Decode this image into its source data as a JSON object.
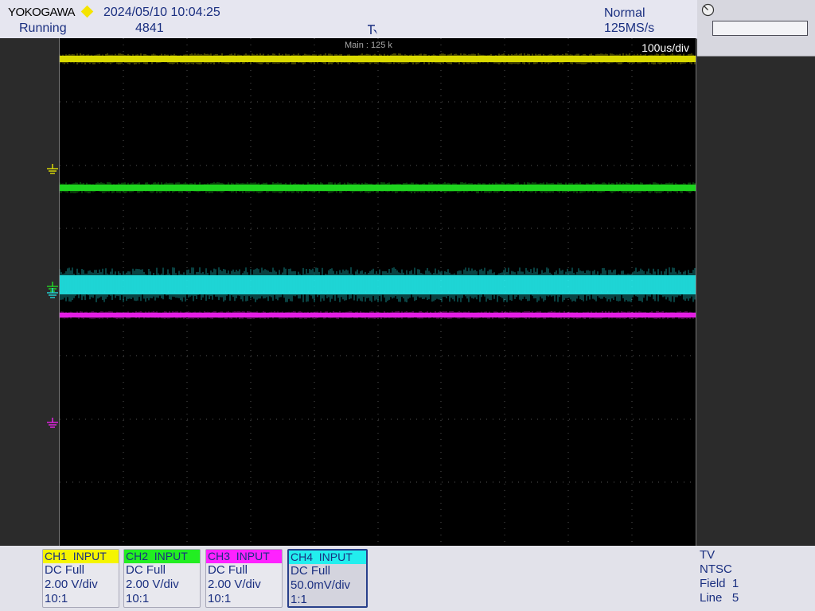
{
  "header": {
    "brand": "YOKOGAWA",
    "datetime": "2024/05/10 10:04:25",
    "run_status": "Running",
    "acq_count": "4841",
    "trigger_mode": "Normal",
    "sample_rate": "125MS/s"
  },
  "screen": {
    "main_label": "Main : 125 k",
    "timebase": "100us/div"
  },
  "channels": [
    {
      "name": "CH1",
      "label": "INPUT",
      "coupling": "DC Full",
      "scale": "2.00 V/div",
      "probe": "10:1",
      "color": "#f5f500"
    },
    {
      "name": "CH2",
      "label": "INPUT",
      "coupling": "DC Full",
      "scale": "2.00 V/div",
      "probe": "10:1",
      "color": "#22ee22"
    },
    {
      "name": "CH3",
      "label": "INPUT",
      "coupling": "DC Full",
      "scale": "2.00 V/div",
      "probe": "10:1",
      "color": "#ff22ff"
    },
    {
      "name": "CH4",
      "label": "INPUT",
      "coupling": "DC Full",
      "scale": "50.0mV/div",
      "probe": "1:1",
      "color": "#22eeee"
    }
  ],
  "trigger_info": {
    "type": "TV",
    "standard": "NTSC",
    "field_label": "Field",
    "field_value": "1",
    "line_label": "Line",
    "line_value": "5"
  },
  "traces_noise_note": "waveforms are noisy flat lines",
  "colors": {
    "ch1": "#f5f500",
    "ch2": "#22ee22",
    "ch3": "#ff22ff",
    "ch4": "#22eeee",
    "text_primary": "#1a2f80"
  }
}
